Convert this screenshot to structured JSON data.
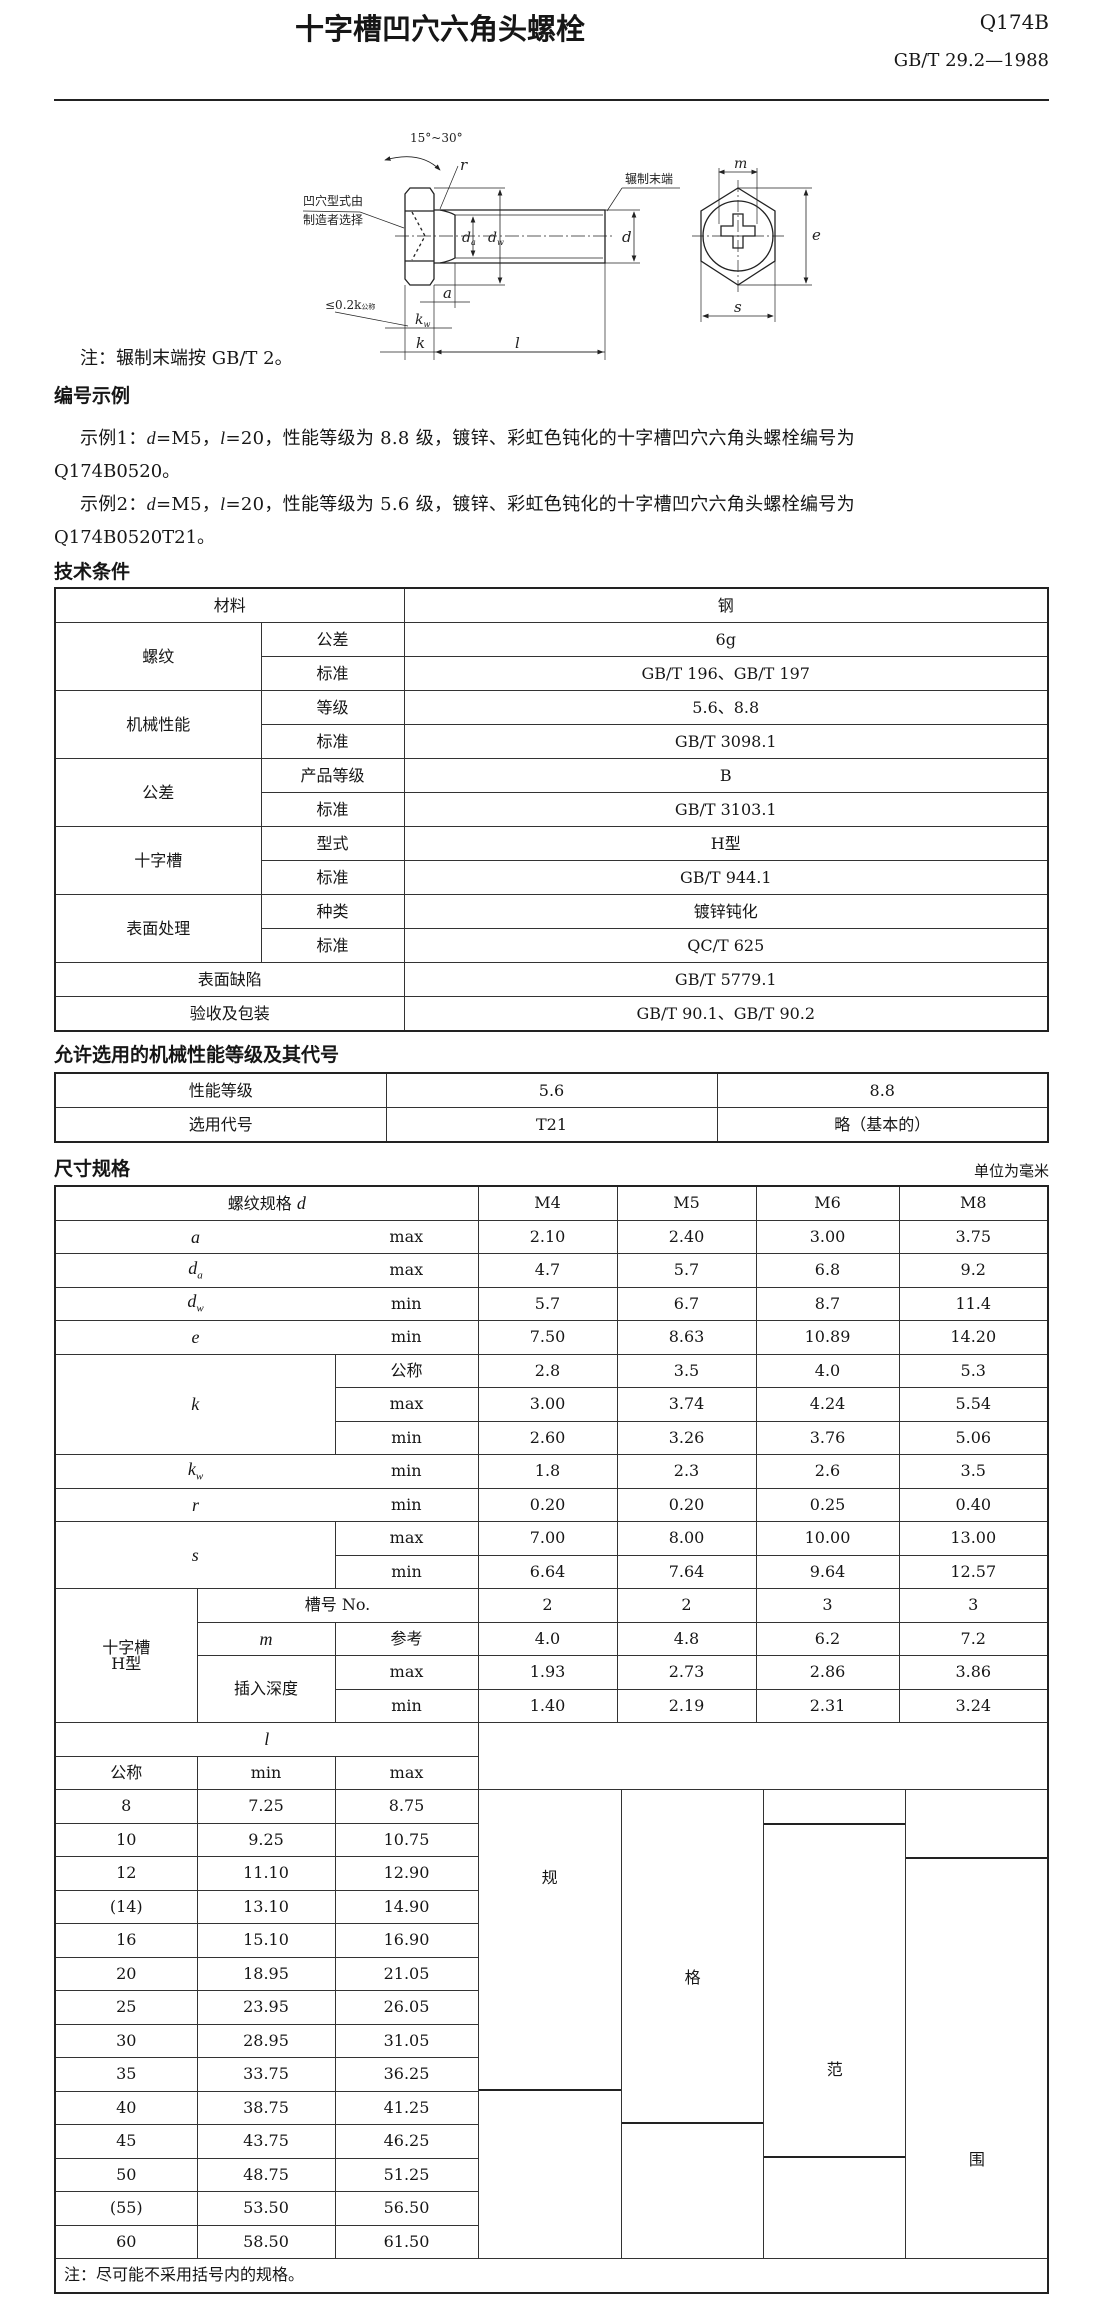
{
  "header": {
    "title": "十字槽凹穴六角头螺栓",
    "code": "Q174B",
    "standard": "GB/T 29.2—1988"
  },
  "figure": {
    "labels": {
      "angle": "15°~30°",
      "r": "r",
      "recess1": "凹穴型式由",
      "recess2": "制造者选择",
      "rolled_end": "辗制末端",
      "d": "d",
      "da": "d",
      "da_sub": "a",
      "dw": "d",
      "dw_sub": "w",
      "a": "a",
      "le02k": "≤0.2k",
      "le02k_sub": "公称",
      "kw": "k",
      "kw_sub": "w",
      "k": "k",
      "l": "l",
      "m": "m",
      "e": "e",
      "s": "s"
    }
  },
  "note": "注：辗制末端按 GB/T 2。",
  "examples": {
    "heading": "编号示例",
    "ex1": {
      "prefix": "示例1：",
      "d": "d",
      "p1": "=M5，",
      "l": "l",
      "p2": "=20，性能等级为 8.8 级，镀锌、彩虹色钝化的十字槽凹穴六角头螺栓编号为",
      "code": "Q174B0520。"
    },
    "ex2": {
      "prefix": "示例2：",
      "d": "d",
      "p1": "=M5，",
      "l": "l",
      "p2": "=20，性能等级为 5.6 级，镀锌、彩虹色钝化的十字槽凹穴六角头螺栓编号为",
      "code": "Q174B0520T21。"
    }
  },
  "tech": {
    "heading": "技术条件",
    "material": {
      "label": "材料",
      "value": "钢"
    },
    "thread": {
      "label": "螺纹",
      "tol_label": "公差",
      "tol": "6g",
      "std_label": "标准",
      "std": "GB/T 196、GB/T 197"
    },
    "mech": {
      "label": "机械性能",
      "grade_label": "等级",
      "grade": "5.6、8.8",
      "std_label": "标准",
      "std": "GB/T 3098.1"
    },
    "tolerance": {
      "label": "公差",
      "grade_label": "产品等级",
      "grade": "B",
      "std_label": "标准",
      "std": "GB/T 3103.1"
    },
    "cross": {
      "label": "十字槽",
      "type_label": "型式",
      "type": "H型",
      "std_label": "标准",
      "std": "GB/T 944.1"
    },
    "surface": {
      "label": "表面处理",
      "kind_label": "种类",
      "kind": "镀锌钝化",
      "std_label": "标准",
      "std": "QC/T 625"
    },
    "defects": {
      "label": "表面缺陷",
      "value": "GB/T 5779.1"
    },
    "acceptance": {
      "label": "验收及包装",
      "value": "GB/T 90.1、GB/T 90.2"
    }
  },
  "grades": {
    "heading": "允许选用的机械性能等级及其代号",
    "row1": {
      "label": "性能等级",
      "v1": "5.6",
      "v2": "8.8"
    },
    "row2": {
      "label": "选用代号",
      "v1": "T21",
      "v2": "略（基本的）"
    }
  },
  "dims": {
    "heading": "尺寸规格",
    "unit": "单位为毫米",
    "spec_label": "螺纹规格",
    "spec_sym": "d",
    "sizes": [
      "M4",
      "M5",
      "M6",
      "M8"
    ],
    "a": {
      "sym": "a",
      "q": "max",
      "v": [
        "2.10",
        "2.40",
        "3.00",
        "3.75"
      ]
    },
    "da": {
      "sym": "d",
      "sub": "a",
      "q": "max",
      "v": [
        "4.7",
        "5.7",
        "6.8",
        "9.2"
      ]
    },
    "dw": {
      "sym": "d",
      "sub": "w",
      "q": "min",
      "v": [
        "5.7",
        "6.7",
        "8.7",
        "11.4"
      ]
    },
    "e": {
      "sym": "e",
      "q": "min",
      "v": [
        "7.50",
        "8.63",
        "10.89",
        "14.20"
      ]
    },
    "k": {
      "sym": "k",
      "nom": {
        "q": "公称",
        "v": [
          "2.8",
          "3.5",
          "4.0",
          "5.3"
        ]
      },
      "max": {
        "q": "max",
        "v": [
          "3.00",
          "3.74",
          "4.24",
          "5.54"
        ]
      },
      "min": {
        "q": "min",
        "v": [
          "2.60",
          "3.26",
          "3.76",
          "5.06"
        ]
      }
    },
    "kw": {
      "sym": "k",
      "sub": "w",
      "q": "min",
      "v": [
        "1.8",
        "2.3",
        "2.6",
        "3.5"
      ]
    },
    "r": {
      "sym": "r",
      "q": "min",
      "v": [
        "0.20",
        "0.20",
        "0.25",
        "0.40"
      ]
    },
    "s": {
      "sym": "s",
      "max": {
        "q": "max",
        "v": [
          "7.00",
          "8.00",
          "10.00",
          "13.00"
        ]
      },
      "min": {
        "q": "min",
        "v": [
          "6.64",
          "7.64",
          "9.64",
          "12.57"
        ]
      }
    },
    "cross": {
      "label1": "十字槽",
      "label2": "H型",
      "no": {
        "label": "槽号 No.",
        "v": [
          "2",
          "2",
          "3",
          "3"
        ]
      },
      "m": {
        "sym": "m",
        "q": "参考",
        "v": [
          "4.0",
          "4.8",
          "6.2",
          "7.2"
        ]
      },
      "depth": {
        "label": "插入深度",
        "max": {
          "q": "max",
          "v": [
            "1.93",
            "2.73",
            "2.86",
            "3.86"
          ]
        },
        "min": {
          "q": "min",
          "v": [
            "1.40",
            "2.19",
            "2.31",
            "3.24"
          ]
        }
      }
    },
    "length": {
      "sym": "l",
      "nom_label": "公称",
      "min_label": "min",
      "max_label": "max",
      "rows": [
        [
          "8",
          "7.25",
          "8.75"
        ],
        [
          "10",
          "9.25",
          "10.75"
        ],
        [
          "12",
          "11.10",
          "12.90"
        ],
        [
          "(14)",
          "13.10",
          "14.90"
        ],
        [
          "16",
          "15.10",
          "16.90"
        ],
        [
          "20",
          "18.95",
          "21.05"
        ],
        [
          "25",
          "23.95",
          "26.05"
        ],
        [
          "30",
          "28.95",
          "31.05"
        ],
        [
          "35",
          "33.75",
          "36.25"
        ],
        [
          "40",
          "38.75",
          "41.25"
        ],
        [
          "45",
          "43.75",
          "46.25"
        ],
        [
          "50",
          "48.75",
          "51.25"
        ],
        [
          "(55)",
          "53.50",
          "56.50"
        ],
        [
          "60",
          "58.50",
          "61.50"
        ]
      ]
    },
    "ranges": [
      {
        "size": "M4",
        "from": "8",
        "to": "35",
        "label": "规"
      },
      {
        "size": "M5",
        "from": "8",
        "to": "40",
        "label": "格"
      },
      {
        "size": "M6",
        "from": "10",
        "to": "45",
        "label": "范"
      },
      {
        "size": "M8",
        "from": "12",
        "to": "60",
        "label": "围"
      }
    ],
    "note": "注：尽可能不采用括号内的规格。"
  }
}
